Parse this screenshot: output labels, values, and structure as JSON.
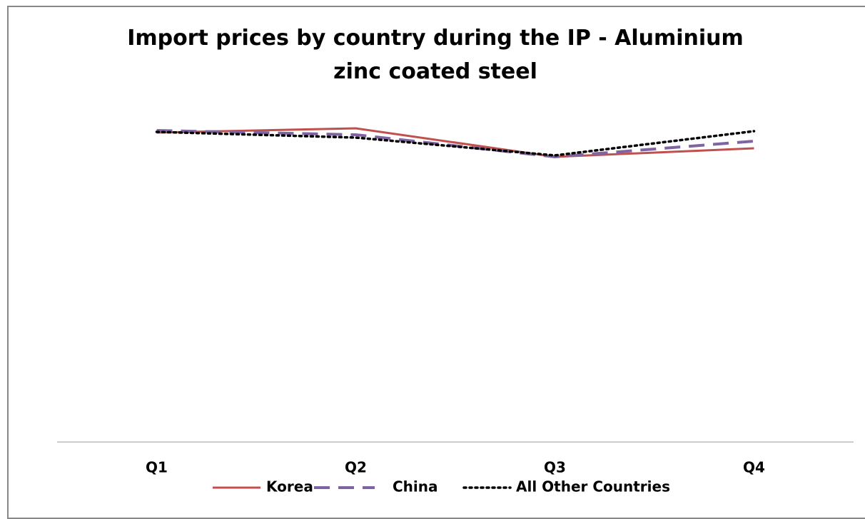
{
  "chart_data": {
    "type": "line",
    "title": "Import prices by country during the IP - Aluminium zinc coated steel",
    "categories": [
      "Q1",
      "Q2",
      "Q3",
      "Q4"
    ],
    "series": [
      {
        "name": "Korea",
        "color": "#c0504d",
        "style": "solid",
        "values": [
          434,
          440,
          400,
          412
        ]
      },
      {
        "name": "China",
        "color": "#8064a2",
        "style": "dashed",
        "values": [
          437,
          431,
          400,
          422
        ]
      },
      {
        "name": "All Other Countries",
        "color": "#000000",
        "style": "dotted",
        "values": [
          435,
          427,
          402,
          436
        ]
      }
    ],
    "ylim": [
      0,
      500
    ]
  }
}
